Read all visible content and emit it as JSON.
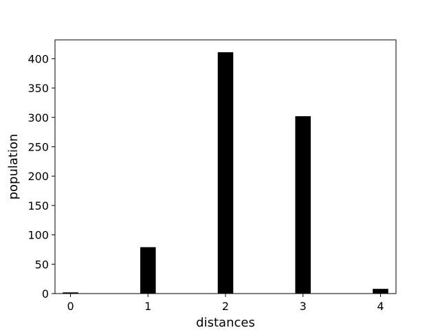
{
  "chart_data": {
    "type": "bar",
    "title": "",
    "xlabel": "distances",
    "ylabel": "population",
    "x": [
      0,
      1,
      2,
      3,
      4
    ],
    "values": [
      2,
      79,
      411,
      302,
      8
    ],
    "bar_color": "#000000",
    "xlim": [
      -0.2,
      4.2
    ],
    "ylim": [
      0,
      432
    ],
    "xticks": [
      0,
      1,
      2,
      3,
      4
    ],
    "yticks": [
      0,
      50,
      100,
      150,
      200,
      250,
      300,
      350,
      400
    ],
    "grid": false,
    "legend": "none"
  }
}
